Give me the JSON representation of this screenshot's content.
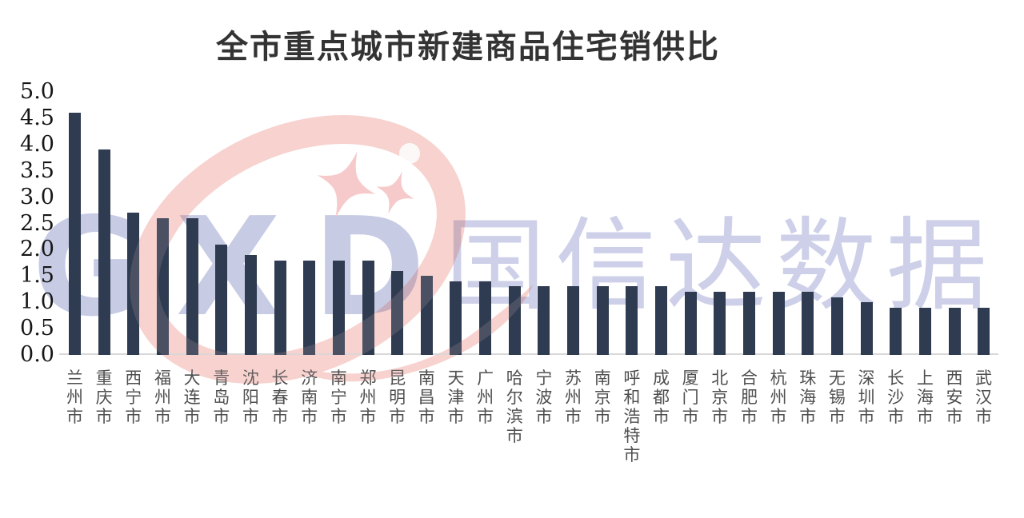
{
  "title": "全市重点城市新建商品住宅销供比",
  "watermark": {
    "letters": "GXD",
    "brand": "国信达数据"
  },
  "colors": {
    "bar": "#2e3b50",
    "title": "#333333",
    "axis_label": "#161616",
    "city_label": "#4f4f4f",
    "baseline": "#d8d8d8",
    "watermark_letters": "#c7cbe4",
    "watermark_brand": "#cdd0e8",
    "watermark_pink": "#f7d2cf",
    "watermark_sparkle": "#f6caca",
    "background": "#ffffff"
  },
  "chart_data": {
    "type": "bar",
    "title": "全市重点城市新建商品住宅销供比",
    "categories": [
      "兰州市",
      "重庆市",
      "西宁市",
      "福州市",
      "大连市",
      "青岛市",
      "沈阳市",
      "长春市",
      "济南市",
      "南宁市",
      "郑州市",
      "昆明市",
      "南昌市",
      "天津市",
      "广州市",
      "哈尔滨市",
      "宁波市",
      "苏州市",
      "南京市",
      "呼和浩特市",
      "成都市",
      "厦门市",
      "北京市",
      "合肥市",
      "杭州市",
      "珠海市",
      "无锡市",
      "深圳市",
      "长沙市",
      "上海市",
      "西安市",
      "武汉市"
    ],
    "values": [
      4.6,
      3.9,
      2.7,
      2.6,
      2.6,
      2.1,
      1.9,
      1.8,
      1.8,
      1.8,
      1.8,
      1.6,
      1.5,
      1.4,
      1.4,
      1.3,
      1.3,
      1.3,
      1.3,
      1.3,
      1.3,
      1.2,
      1.2,
      1.2,
      1.2,
      1.2,
      1.1,
      1.0,
      0.9,
      0.9,
      0.9,
      0.9
    ],
    "xlabel": "",
    "ylabel": "",
    "ylim": [
      0,
      5
    ],
    "yticks": [
      5.0,
      4.5,
      4.0,
      3.5,
      3.0,
      2.5,
      2.0,
      1.5,
      1.0,
      0.5,
      0.0
    ],
    "ytick_labels": [
      "5.0",
      "4.5",
      "4.0",
      "3.5",
      "3.0",
      "2.5",
      "2.0",
      "1.5",
      "1.0",
      "0.5",
      "0.0"
    ],
    "grid": false,
    "legend": null
  }
}
